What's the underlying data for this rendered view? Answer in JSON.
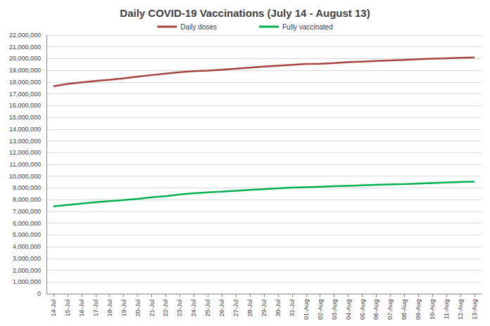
{
  "chart_data": {
    "type": "line",
    "title": "Daily COVID-19 Vaccinations (July 14 - August 13)",
    "categories": [
      "14-Jul",
      "15-Jul",
      "16-Jul",
      "17-Jul",
      "18-Jul",
      "19-Jul",
      "20-Jul",
      "21-Jul",
      "22-Jul",
      "23-Jul",
      "24-Jul",
      "25-Jul",
      "26-Jul",
      "27-Jul",
      "28-Jul",
      "29-Jul",
      "30-Jul",
      "31-Jul",
      "01-Aug",
      "02-Aug",
      "03-Aug",
      "04-Aug",
      "05-Aug",
      "06-Aug",
      "07-Aug",
      "08-Aug",
      "09-Aug",
      "10-Aug",
      "11-Aug",
      "12-Aug",
      "13-Aug"
    ],
    "series": [
      {
        "name": "Daily doses",
        "color": "#a5423f",
        "values": [
          17650000,
          17850000,
          17980000,
          18100000,
          18200000,
          18330000,
          18470000,
          18600000,
          18730000,
          18850000,
          18930000,
          18980000,
          19060000,
          19150000,
          19230000,
          19320000,
          19400000,
          19470000,
          19550000,
          19570000,
          19620000,
          19700000,
          19750000,
          19800000,
          19850000,
          19900000,
          19950000,
          19990000,
          20030000,
          20070000,
          20100000
        ]
      },
      {
        "name": "Fully vaccinated",
        "color": "#00b050",
        "values": [
          7430000,
          7550000,
          7670000,
          7780000,
          7880000,
          7970000,
          8070000,
          8200000,
          8300000,
          8450000,
          8550000,
          8620000,
          8680000,
          8760000,
          8840000,
          8900000,
          8970000,
          9020000,
          9060000,
          9100000,
          9140000,
          9180000,
          9220000,
          9260000,
          9300000,
          9320000,
          9370000,
          9420000,
          9460000,
          9500000,
          9530000
        ]
      }
    ],
    "ylim": [
      0,
      22000000
    ],
    "yticks": [
      0,
      {
        "value": 1000000,
        "label": "1,000,000"
      },
      {
        "value": 2000000,
        "label": "2,000,000"
      },
      {
        "value": 3000000,
        "label": "3,000,000"
      },
      {
        "value": 4000000,
        "label": "4,000,000"
      },
      {
        "value": 5000000,
        "label": "5,000,000"
      },
      {
        "value": 6000000,
        "label": "6,000,000"
      },
      {
        "value": 7000000,
        "label": "7,000,000"
      },
      {
        "value": 8000000,
        "label": "8,000,000"
      },
      {
        "value": 9000000,
        "label": "9,000,000"
      },
      {
        "value": 10000000,
        "label": "10,000,000"
      },
      {
        "value": 11000000,
        "label": "11,000,000"
      },
      {
        "value": 12000000,
        "label": "12,000,000"
      },
      {
        "value": 13000000,
        "label": "13,000,000"
      },
      {
        "value": 14000000,
        "label": "14,000,000"
      },
      {
        "value": 15000000,
        "label": "15,000,000"
      },
      {
        "value": 16000000,
        "label": "16,000,000"
      },
      {
        "value": 17000000,
        "label": "17,000,000"
      },
      {
        "value": 18000000,
        "label": "18,000,000"
      },
      {
        "value": 19000000,
        "label": "19,000,000"
      },
      {
        "value": 20000000,
        "label": "20,000,000"
      },
      {
        "value": 21000000,
        "label": "21,000,000"
      },
      {
        "value": 22000000,
        "label": "22,000,000"
      }
    ],
    "grid": true,
    "legend": "top"
  }
}
